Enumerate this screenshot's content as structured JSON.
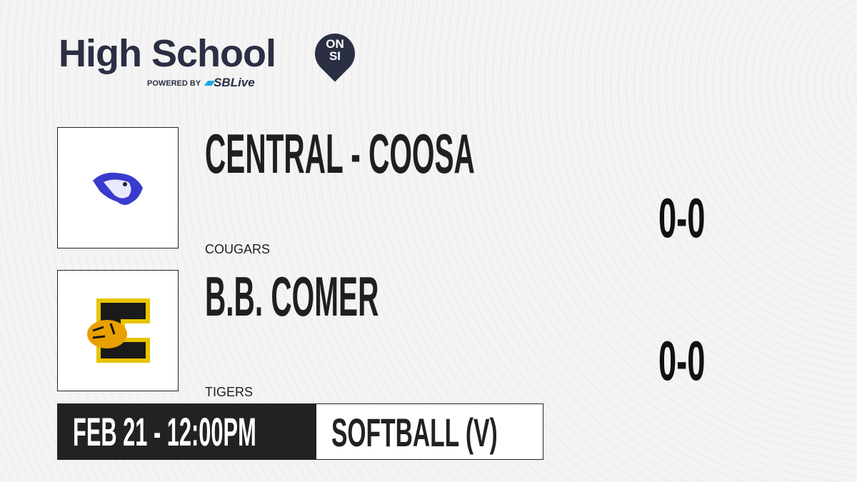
{
  "brand": {
    "title": "High School",
    "badge_top": "ON",
    "badge_bottom": "SI",
    "powered_by": "POWERED BY",
    "partner_prefix": "S",
    "partner": "SBLive",
    "colors": {
      "navy": "#2b2f44",
      "partner_blue": "#1fa6e0"
    }
  },
  "teams": [
    {
      "name": "CENTRAL - COOSA",
      "mascot": "COUGARS",
      "score": "0-0",
      "logo_icon": "cougar-logo-icon",
      "logo_color": "#3a3acc"
    },
    {
      "name": "B.B. COMER",
      "mascot": "TIGERS",
      "score": "0-0",
      "logo_icon": "tiger-c-logo-icon",
      "logo_color": "#e8c400"
    }
  ],
  "game": {
    "datetime": "FEB 21 - 12:00PM",
    "sport": "SOFTBALL (V)"
  }
}
